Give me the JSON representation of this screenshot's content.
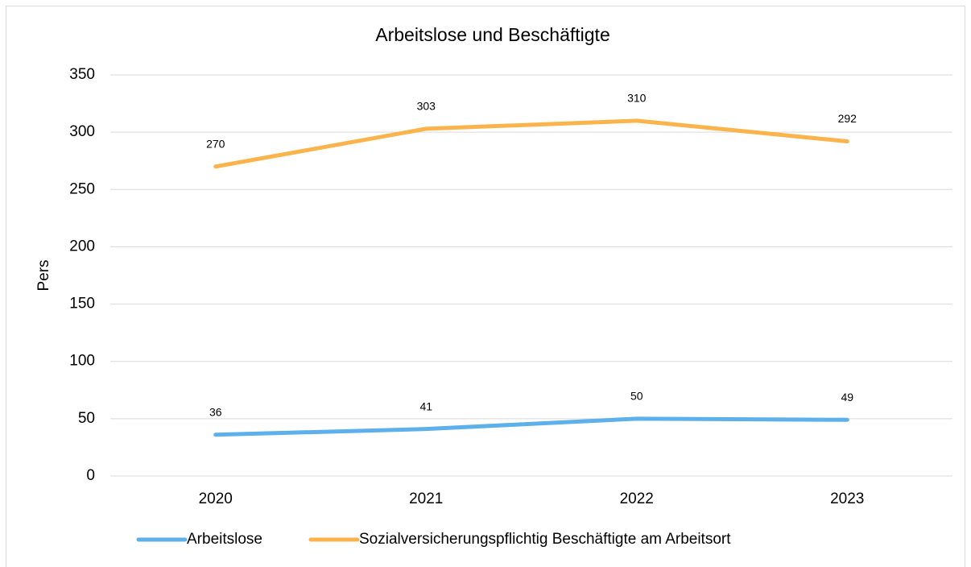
{
  "chart_data": {
    "type": "line",
    "title": "Arbeitslose und Beschäftigte",
    "y_label": "Pers",
    "categories": [
      "2020",
      "2021",
      "2022",
      "2023"
    ],
    "series": [
      {
        "name": "Arbeitslose",
        "color": "#5eb0eb",
        "values": [
          36,
          41,
          50,
          49
        ]
      },
      {
        "name": "Sozialversicherungspflichtig Beschäftigte am Arbeitsort",
        "color": "#fbb44c",
        "values": [
          270,
          303,
          310,
          292
        ]
      }
    ],
    "ylim": [
      0,
      350
    ],
    "yticks": [
      0,
      50,
      100,
      150,
      200,
      250,
      300,
      350
    ],
    "grid": true,
    "legend": "bottom"
  }
}
